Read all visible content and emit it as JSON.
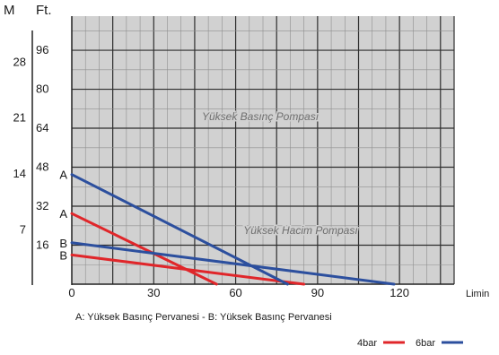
{
  "chart_data": {
    "type": "line",
    "left_axis_unit": "M",
    "right_axis_unit": "Ft.",
    "x_unit_label": "Limin",
    "x_ticks": [
      0,
      30,
      60,
      90,
      120
    ],
    "xlim": [
      0,
      140
    ],
    "ft_ticks": [
      16,
      32,
      48,
      64,
      80,
      96
    ],
    "m_ticks": [
      7,
      14,
      21,
      28
    ],
    "ylim_ft": [
      0,
      110
    ],
    "grid": true,
    "annotations": [
      "Yüksek Basınç Pompası",
      "Yüksek Hacim Pompası"
    ],
    "caption": "A: Yüksek Basınç Pervanesi - B: Yüksek Basınç Pervanesi",
    "series": [
      {
        "name": "4bar",
        "curve": "A",
        "color": "#e0262a",
        "x": [
          0,
          53
        ],
        "y": [
          29,
          0
        ]
      },
      {
        "name": "4bar",
        "curve": "B",
        "color": "#e0262a",
        "x": [
          0,
          85
        ],
        "y": [
          12,
          0
        ]
      },
      {
        "name": "6bar",
        "curve": "A",
        "color": "#2c4f9e",
        "x": [
          0,
          79
        ],
        "y": [
          45,
          0
        ]
      },
      {
        "name": "6bar",
        "curve": "B",
        "color": "#2c4f9e",
        "x": [
          0,
          118
        ],
        "y": [
          17,
          0
        ]
      }
    ],
    "curve_labels": [
      {
        "text": "A",
        "y": 45
      },
      {
        "text": "A",
        "y": 29
      },
      {
        "text": "B",
        "y": 17
      },
      {
        "text": "B",
        "y": 12
      }
    ],
    "legend": [
      {
        "label": "4bar",
        "color": "#e0262a"
      },
      {
        "label": "6bar",
        "color": "#2c4f9e"
      }
    ],
    "legend_position": "bottom-right"
  }
}
